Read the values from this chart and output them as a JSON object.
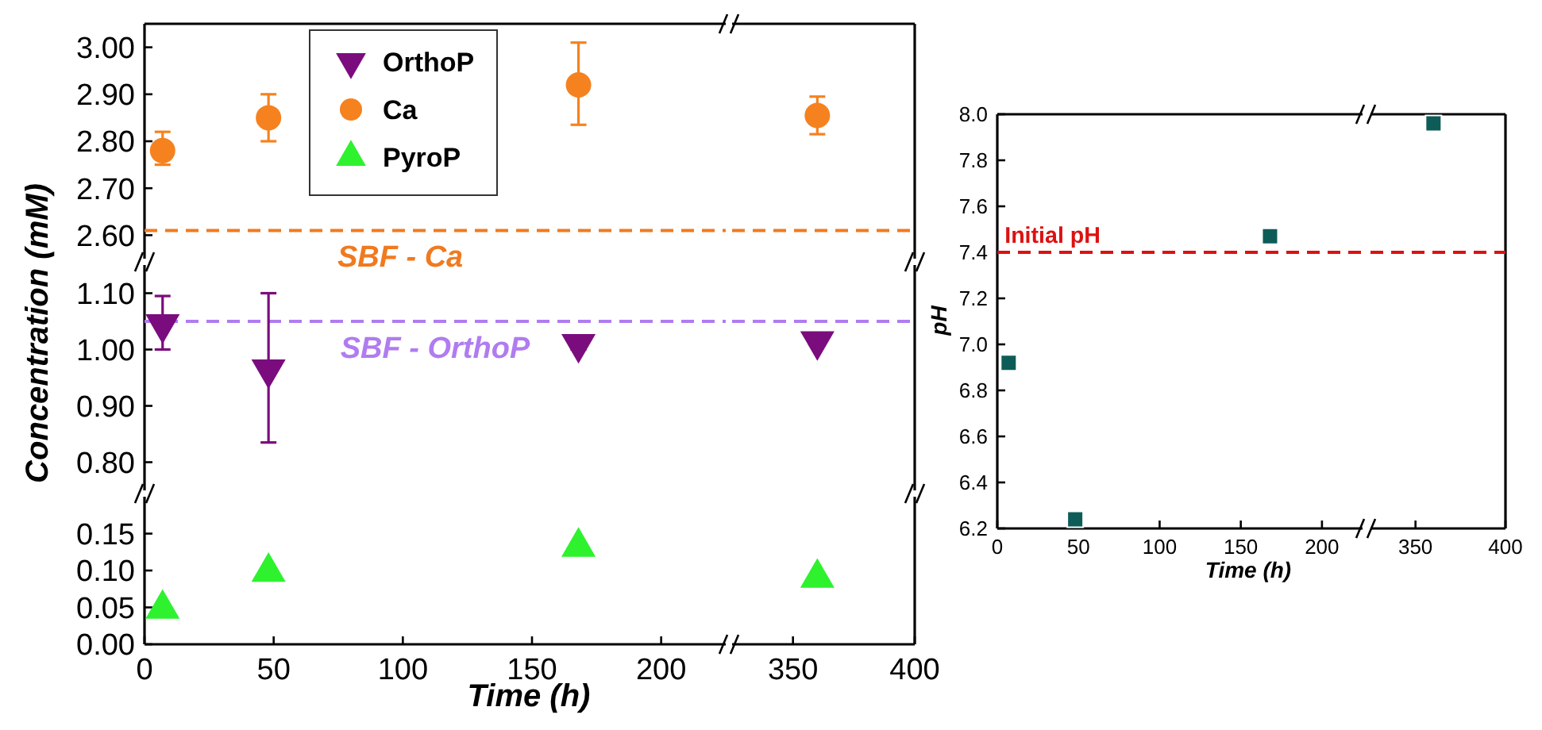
{
  "chart_data": [
    {
      "type": "scatter",
      "xlim": [
        0,
        225
      ],
      "ylim": [
        2.55,
        3.05
      ],
      "yticks": [
        {
          "value": 2.6,
          "label": "2.60"
        },
        {
          "value": 2.7,
          "label": "2.70"
        },
        {
          "value": 2.8,
          "label": "2.80"
        },
        {
          "value": 2.9,
          "label": "2.90"
        },
        {
          "value": 3.0,
          "label": "3.00"
        }
      ],
      "tick_labels": "y",
      "legend": "top",
      "x": [
        7,
        48,
        168
      ],
      "series": [
        {
          "name": "OrthoP",
          "color": "#7b0c7e",
          "marker": "triangle-down",
          "values": [
            null,
            null,
            null
          ]
        },
        {
          "name": "Ca",
          "color": "#f5821f",
          "marker": "circle",
          "values": [
            2.78,
            2.85,
            2.92
          ],
          "errors": [
            [
              2.75,
              2.82
            ],
            [
              2.8,
              2.9
            ],
            [
              2.835,
              3.01
            ]
          ]
        },
        {
          "name": "PyroP",
          "color": "#2ef22e",
          "marker": "triangle",
          "values": [
            null,
            null,
            null
          ]
        }
      ],
      "ref_lines": [
        {
          "axis": "y",
          "value": 2.61,
          "label": "SBF - Ca",
          "color": "#f07a20",
          "line_style": "dashed"
        }
      ]
    },
    {
      "type": "scatter",
      "xlim": [
        325,
        400
      ],
      "ylim": [
        2.55,
        3.05
      ],
      "tick_labels": false,
      "x": [
        360
      ],
      "series": [
        {
          "color": "#f5821f",
          "marker": "circle",
          "values": [
            2.855
          ],
          "errors": [
            [
              2.815,
              2.895
            ]
          ]
        }
      ],
      "ref_lines": [
        {
          "axis": "y",
          "value": 2.61,
          "color": "#f07a20",
          "line_style": "dashed"
        }
      ]
    },
    {
      "type": "scatter",
      "xlim": [
        0,
        225
      ],
      "ylim": [
        0.75,
        1.15
      ],
      "yticks": [
        {
          "value": 0.8,
          "label": "0.80"
        },
        {
          "value": 0.9,
          "label": "0.90"
        },
        {
          "value": 1.0,
          "label": "1.00"
        },
        {
          "value": 1.1,
          "label": "1.10"
        }
      ],
      "tick_labels": "y",
      "ylabel": "Concentration (mM)",
      "x": [
        7,
        48,
        168
      ],
      "series": [
        {
          "color": "#7b0c7e",
          "marker": "triangle-down",
          "values": [
            1.045,
            0.965,
            1.01
          ],
          "errors": [
            [
              1.0,
              1.095
            ],
            [
              0.835,
              1.1
            ],
            [
              1.0,
              1.02
            ]
          ]
        }
      ],
      "ref_lines": [
        {
          "axis": "y",
          "value": 1.05,
          "label": "SBF - OrthoP",
          "color": "#b07cf0",
          "line_style": "dashed"
        }
      ]
    },
    {
      "type": "scatter",
      "xlim": [
        325,
        400
      ],
      "ylim": [
        0.75,
        1.15
      ],
      "tick_labels": false,
      "x": [
        360
      ],
      "series": [
        {
          "color": "#7b0c7e",
          "marker": "triangle-down",
          "values": [
            1.015
          ],
          "errors": [
            [
              1.01,
              1.025
            ]
          ]
        }
      ],
      "ref_lines": [
        {
          "axis": "y",
          "value": 1.05,
          "color": "#b07cf0",
          "line_style": "dashed"
        }
      ]
    },
    {
      "type": "scatter",
      "xlim": [
        0,
        225
      ],
      "ylim": [
        0,
        0.2
      ],
      "xticks": [
        0,
        50,
        100,
        150,
        200
      ],
      "yticks": [
        {
          "value": 0,
          "label": "0.00"
        },
        {
          "value": 0.05,
          "label": "0.05"
        },
        {
          "value": 0.1,
          "label": "0.10"
        },
        {
          "value": 0.15,
          "label": "0.15"
        }
      ],
      "xlabel": "Time (h)",
      "x": [
        7,
        48,
        168
      ],
      "series": [
        {
          "color": "#2ef22e",
          "marker": "triangle",
          "values": [
            0.048,
            0.098,
            0.132
          ]
        }
      ]
    },
    {
      "type": "scatter",
      "xlim": [
        325,
        400
      ],
      "ylim": [
        0,
        0.2
      ],
      "xticks": [
        350,
        400
      ],
      "tick_labels": "x",
      "x": [
        360
      ],
      "series": [
        {
          "color": "#2ef22e",
          "marker": "triangle",
          "values": [
            0.09
          ]
        }
      ]
    },
    {
      "type": "scatter",
      "xlim": [
        0,
        225
      ],
      "ylim": [
        6.2,
        8.0
      ],
      "xticks": [
        0,
        50,
        100,
        150,
        200
      ],
      "yticks": [
        6.2,
        6.4,
        6.6,
        6.8,
        {
          "value": 7.0,
          "label": "7.0"
        },
        7.2,
        7.4,
        7.6,
        7.8,
        {
          "value": 8.0,
          "label": "8.0"
        }
      ],
      "xlabel": "Time (h)",
      "ylabel": "pH",
      "x": [
        7,
        48,
        168
      ],
      "series": [
        {
          "color": "#0d5c57",
          "marker": "square",
          "values": [
            6.92,
            6.24,
            7.47
          ]
        }
      ],
      "ref_lines": [
        {
          "axis": "y",
          "value": 7.4,
          "label": "Initial pH",
          "color": "#dd1111",
          "line_style": "dashed"
        }
      ]
    },
    {
      "type": "scatter",
      "xlim": [
        325,
        400
      ],
      "ylim": [
        6.2,
        8.0
      ],
      "xticks": [
        350,
        400
      ],
      "tick_labels": "x",
      "x": [
        360
      ],
      "series": [
        {
          "color": "#0d5c57",
          "marker": "square",
          "values": [
            7.96
          ]
        }
      ],
      "ref_lines": [
        {
          "axis": "y",
          "value": 7.4,
          "color": "#dd1111",
          "line_style": "dashed"
        }
      ]
    }
  ]
}
